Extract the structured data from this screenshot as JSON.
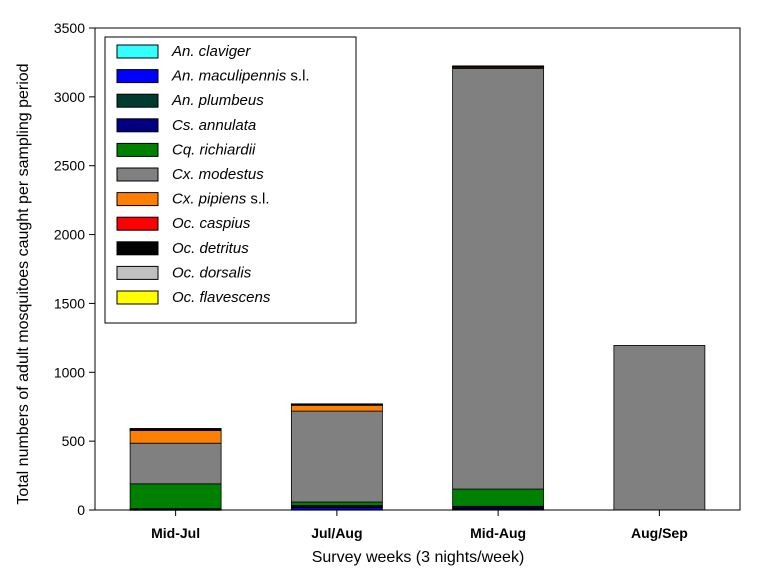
{
  "chart_data": {
    "type": "bar",
    "stacked": true,
    "xlabel": "Survey weeks (3 nights/week)",
    "ylabel": "Total numbers of adult mosquitoes caught per sampling period",
    "ylim": [
      0,
      3500
    ],
    "yticks": [
      0,
      500,
      1000,
      1500,
      2000,
      2500,
      3000,
      3500
    ],
    "categories": [
      "Mid-Jul",
      "Jul/Aug",
      "Mid-Aug",
      "Aug/Sep"
    ],
    "legend_position": "top-left",
    "grid": false,
    "series": [
      {
        "genus": "An.",
        "species": "claviger",
        "suffix": "",
        "color": "#33FFFF",
        "values": [
          2,
          3,
          3,
          0
        ]
      },
      {
        "genus": "An.",
        "species": "maculipennis",
        "suffix": " s.l.",
        "color": "#0000FF",
        "values": [
          3,
          15,
          8,
          0
        ]
      },
      {
        "genus": "An.",
        "species": "plumbeus",
        "suffix": "",
        "color": "#003B2F",
        "values": [
          2,
          5,
          4,
          0
        ]
      },
      {
        "genus": "Cs.",
        "species": "annulata",
        "suffix": "",
        "color": "#000080",
        "values": [
          3,
          10,
          12,
          0
        ]
      },
      {
        "genus": "Cq.",
        "species": "richiardii",
        "suffix": "",
        "color": "#008000",
        "values": [
          180,
          25,
          125,
          0
        ]
      },
      {
        "genus": "Cx.",
        "species": "modestus",
        "suffix": "",
        "color": "#808080",
        "values": [
          295,
          660,
          3055,
          1195
        ]
      },
      {
        "genus": "Cx.",
        "species": "pipiens",
        "suffix": " s.l.",
        "color": "#FF8000",
        "values": [
          95,
          45,
          10,
          0
        ]
      },
      {
        "genus": "Oc.",
        "species": "caspius",
        "suffix": "",
        "color": "#FF0000",
        "values": [
          1,
          1,
          1,
          0
        ]
      },
      {
        "genus": "Oc.",
        "species": "detritus",
        "suffix": "",
        "color": "#000000",
        "values": [
          3,
          2,
          2,
          0
        ]
      },
      {
        "genus": "Oc.",
        "species": "dorsalis",
        "suffix": "",
        "color": "#C0C0C0",
        "values": [
          6,
          3,
          2,
          0
        ]
      },
      {
        "genus": "Oc.",
        "species": "flavescens",
        "suffix": "",
        "color": "#FFFF00",
        "values": [
          2,
          2,
          3,
          0
        ]
      }
    ]
  }
}
